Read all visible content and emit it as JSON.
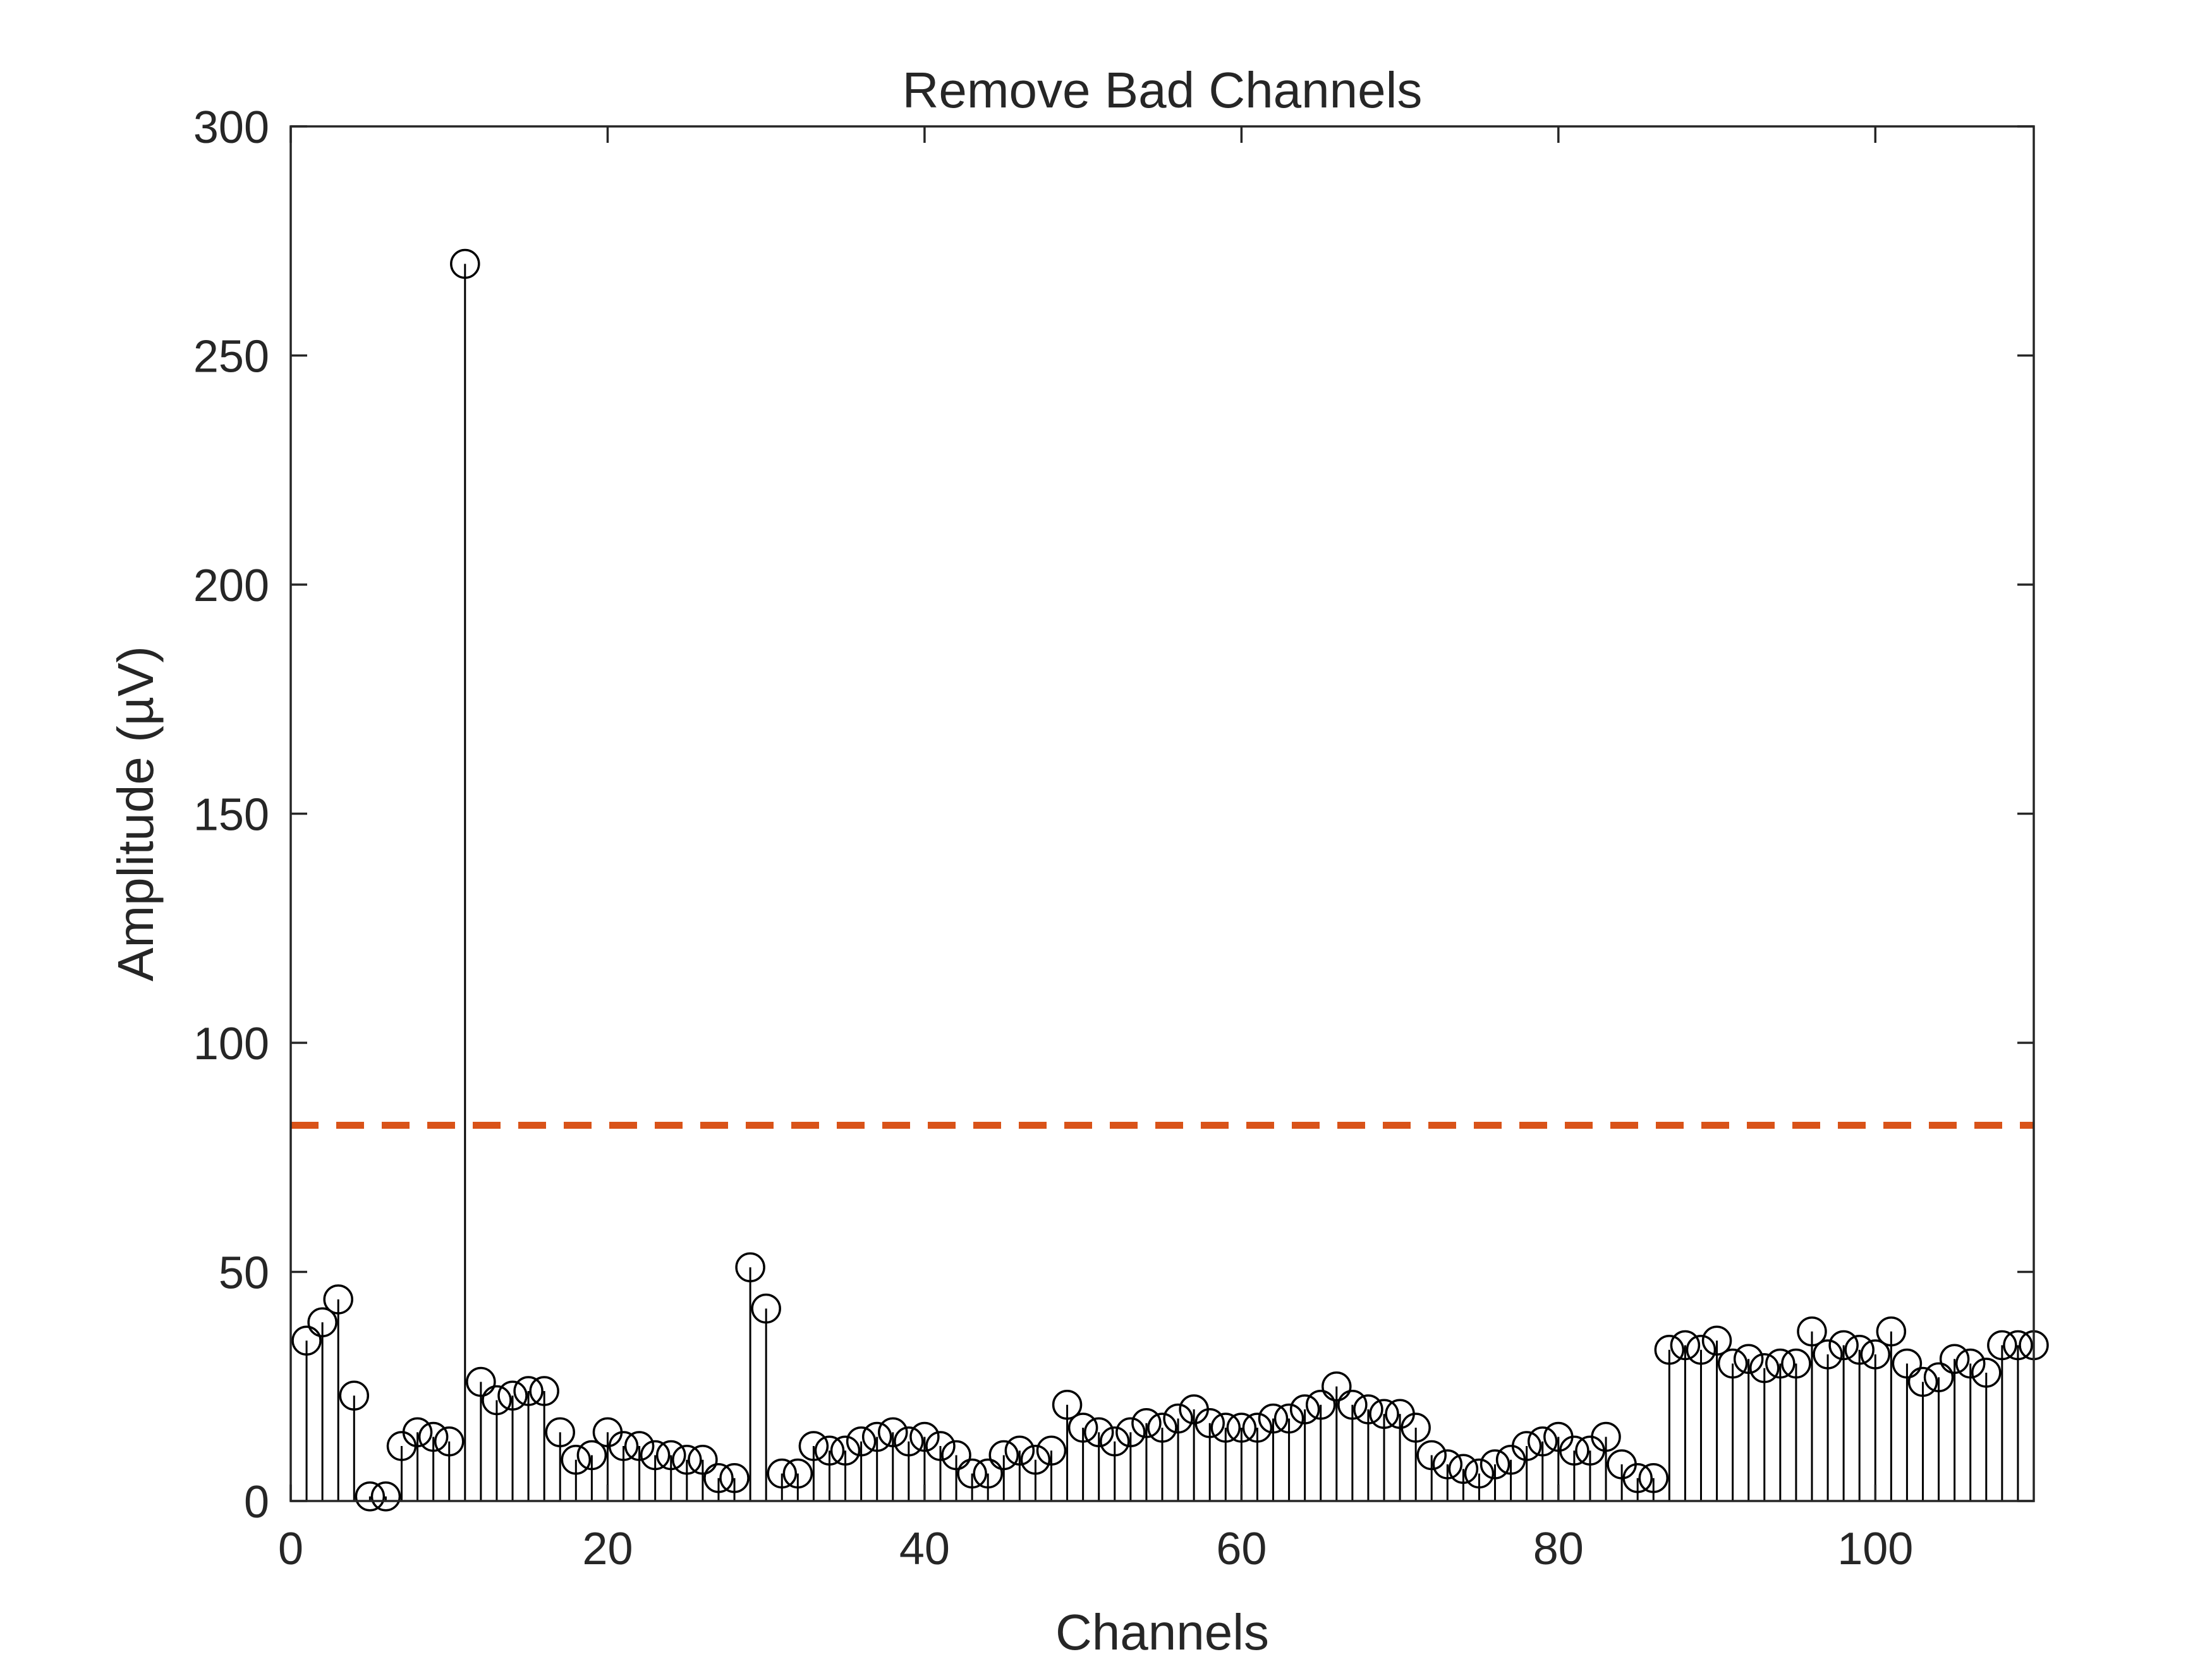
{
  "chart_data": {
    "type": "stem",
    "title": "Remove Bad Channels",
    "xlabel": "Channels",
    "ylabel": "Amplitude (µV)",
    "xlim": [
      0,
      110
    ],
    "ylim": [
      0,
      300
    ],
    "xticks": [
      0,
      20,
      40,
      60,
      80,
      100
    ],
    "yticks": [
      0,
      50,
      100,
      150,
      200,
      250,
      300
    ],
    "threshold": {
      "value": 82,
      "color": "#D95319",
      "style": "dashed"
    },
    "marker_color": "#000000",
    "grid": false,
    "legend": "none",
    "series": [
      {
        "x": [
          1,
          2,
          3,
          4,
          5,
          6,
          7,
          8,
          9,
          10,
          11,
          12,
          13,
          14,
          15,
          16,
          17,
          18,
          19,
          20,
          21,
          22,
          23,
          24,
          25,
          26,
          27,
          28,
          29,
          30,
          31,
          32,
          33,
          34,
          35,
          36,
          37,
          38,
          39,
          40,
          41,
          42,
          43,
          44,
          45,
          46,
          47,
          48,
          49,
          50,
          51,
          52,
          53,
          54,
          55,
          56,
          57,
          58,
          59,
          60,
          61,
          62,
          63,
          64,
          65,
          66,
          67,
          68,
          69,
          70,
          71,
          72,
          73,
          74,
          75,
          76,
          77,
          78,
          79,
          80,
          81,
          82,
          83,
          84,
          85,
          86,
          87,
          88,
          89,
          90,
          91,
          92,
          93,
          94,
          95,
          96,
          97,
          98,
          99,
          100,
          101,
          102,
          103,
          104,
          105,
          106,
          107,
          108,
          109,
          110
        ],
        "values": [
          35,
          39,
          44,
          23,
          1,
          1,
          12,
          15,
          14,
          13,
          270,
          26,
          22,
          23,
          24,
          24,
          15,
          9,
          10,
          15,
          12,
          12,
          10,
          10,
          9,
          9,
          5,
          5,
          51,
          42,
          6,
          6,
          12,
          11,
          11,
          13,
          14,
          15,
          13,
          14,
          12,
          10,
          6,
          6,
          10,
          11,
          9,
          11,
          21,
          16,
          15,
          13,
          15,
          17,
          16,
          18,
          20,
          17,
          16,
          16,
          16,
          18,
          18,
          20,
          21,
          25,
          21,
          20,
          19,
          19,
          16,
          10,
          8,
          7,
          6,
          8,
          9,
          12,
          13,
          14,
          11,
          11,
          14,
          8,
          5,
          5,
          33,
          34,
          33,
          35,
          30,
          31,
          29,
          30,
          30,
          37,
          32,
          34,
          33,
          32,
          37,
          30,
          26,
          27,
          31,
          30,
          28,
          34,
          34,
          34
        ]
      }
    ]
  }
}
